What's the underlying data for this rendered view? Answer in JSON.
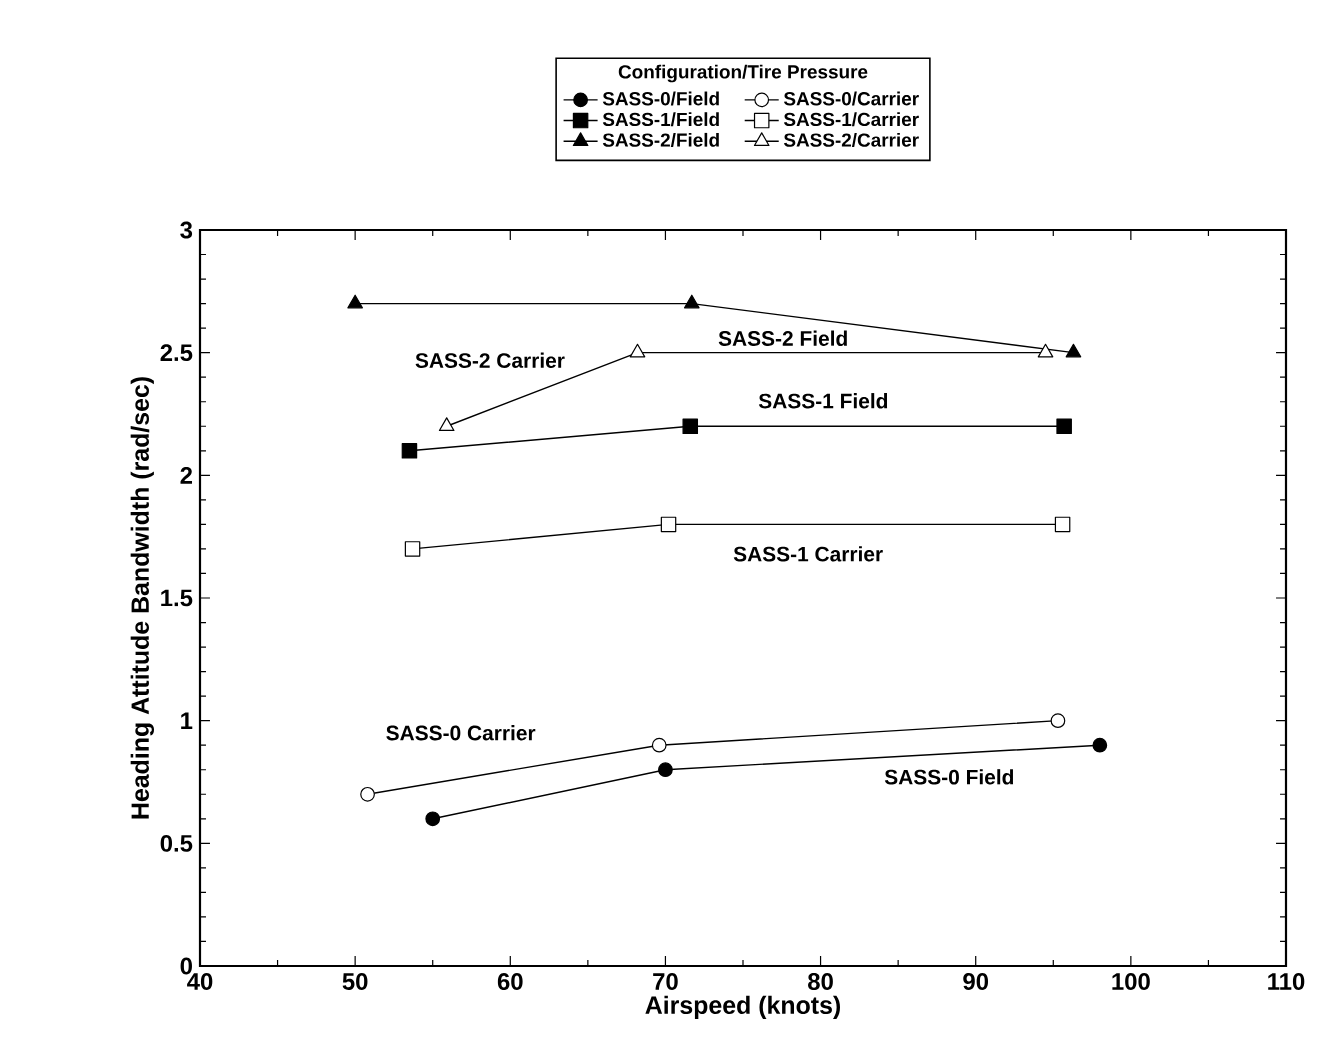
{
  "chart_data": {
    "type": "line",
    "xlabel": "Airspeed (knots)",
    "ylabel": "Heading Attitude Bandwidth (rad/sec)",
    "legend_title": "Configuration/Tire Pressure",
    "xlim": [
      40,
      110
    ],
    "xticks": [
      40,
      50,
      60,
      70,
      80,
      90,
      100,
      110
    ],
    "ylim": [
      0,
      3
    ],
    "yticks": [
      0,
      0.5,
      1,
      1.5,
      2,
      2.5,
      3
    ],
    "grid": false,
    "legend": "top",
    "line_style": "solid",
    "series": [
      {
        "name": "SASS-0/Field",
        "color": "#000000",
        "marker": "circle",
        "x": [
          55,
          70,
          98
        ],
        "values": [
          0.6,
          0.8,
          0.9
        ]
      },
      {
        "name": "SASS-0/Carrier",
        "color": "#000000",
        "marker": "circle",
        "x": [
          50.8,
          69.6,
          95.3
        ],
        "values": [
          0.7,
          0.9,
          1.0
        ]
      },
      {
        "name": "SASS-1/Field",
        "color": "#000000",
        "marker": "square",
        "x": [
          53.5,
          71.6,
          95.7
        ],
        "values": [
          2.1,
          2.2,
          2.2
        ]
      },
      {
        "name": "SASS-1/Carrier",
        "color": "#000000",
        "marker": "square",
        "x": [
          53.7,
          70.2,
          95.6
        ],
        "values": [
          1.7,
          1.8,
          1.8
        ]
      },
      {
        "name": "SASS-2/Field",
        "color": "#000000",
        "marker": "triangle",
        "x": [
          50,
          71.7,
          96.3
        ],
        "values": [
          2.7,
          2.7,
          2.5
        ]
      },
      {
        "name": "SASS-2/Carrier",
        "color": "#000000",
        "marker": "triangle",
        "x": [
          55.9,
          68.2,
          94.5
        ],
        "values": [
          2.2,
          2.5,
          2.5
        ]
      }
    ],
    "annotations": [
      "SASS-2 Field",
      "SASS-2 Carrier",
      "SASS-1 Field",
      "SASS-1 Carrier",
      "SASS-0 Carrier",
      "SASS-0 Field"
    ]
  }
}
